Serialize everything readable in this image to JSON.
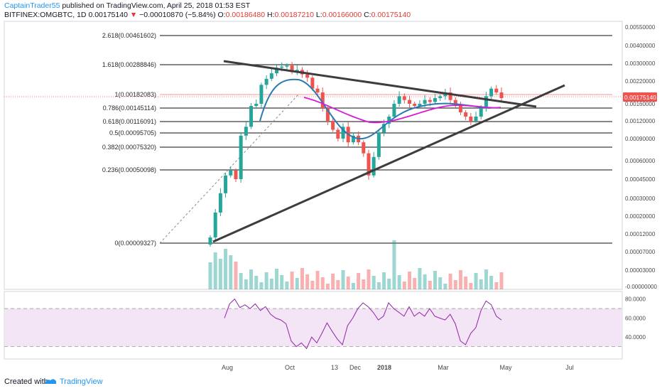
{
  "header": {
    "author": "CaptainTrader55",
    "published": "published on TradingView.com, April 25, 2018 01:53 EST",
    "symbol": "BITFINEX:OMGBTC, 1D",
    "last": "0.00175140",
    "change_arrow": "▼",
    "change": "−0.00010870 (−5.84%)",
    "o_label": "O:",
    "o": "0.00186480",
    "h_label": "H:",
    "h": "0.00187210",
    "l_label": "L:",
    "l": "0.00166000",
    "c_label": "C:",
    "c": "0.00175140"
  },
  "footer": {
    "created_with": "Created with",
    "brand": "TradingView"
  },
  "colors": {
    "up": "#26a69a",
    "down": "#ef5350",
    "ma_blue": "#2a7ab0",
    "ma_magenta": "#d81bd8",
    "rsi_line": "#8e24aa",
    "rsi_band": "#f3e5f5",
    "trendline": "#3d3d3d",
    "price_tag": "#ef5350"
  },
  "chart_data": {
    "type": "candlestick",
    "price_axis_labels": [
      "0.00550000",
      "0.00400000",
      "0.00300000",
      "0.00220000",
      "0.00160000",
      "0.00120000",
      "0.00090000",
      "0.00060000",
      "0.00045000",
      "0.00030000",
      "0.00020000",
      "0.00012000",
      "0.00007000",
      "0.00003000",
      "-0.00000000"
    ],
    "current_price_tag": "0.00175140",
    "rsi_axis_labels": [
      "80.0000",
      "60.0000",
      "40.0000"
    ],
    "time_axis_labels": [
      "Aug",
      "Oct",
      "13",
      "Dec",
      "2018",
      "Mar",
      "May",
      "Jul"
    ],
    "fib_levels": [
      {
        "label": "2.618(0.00461602)"
      },
      {
        "label": "1.618(0.00288846)"
      },
      {
        "label": "1(0.00182083)"
      },
      {
        "label": "0.786(0.00145114)"
      },
      {
        "label": "0.618(0.00116091)"
      },
      {
        "label": "0.5(0.00095705)"
      },
      {
        "label": "0.382(0.00075320)"
      },
      {
        "label": "0.236(0.00050098)"
      },
      {
        "label": "0(0.00009327)"
      }
    ],
    "series": [
      {
        "close": [
          0.00011,
          0.00022,
          0.00034,
          0.00048,
          0.00052,
          0.00045,
          0.00095,
          0.0011,
          0.00155,
          0.0016,
          0.0021,
          0.0023,
          0.00255,
          0.0028,
          0.00285,
          0.0029,
          0.0026,
          0.0027,
          0.0025,
          0.00235,
          0.002,
          0.0019,
          0.0015,
          0.0012,
          0.00105,
          0.0009,
          0.0011,
          0.00085,
          0.00095,
          0.00085,
          0.0007,
          0.00048,
          0.00065,
          0.001,
          0.00115,
          0.0013,
          0.0016,
          0.0018,
          0.0017,
          0.0016,
          0.00155,
          0.0016,
          0.0017,
          0.00165,
          0.00175,
          0.0018,
          0.0019,
          0.0017,
          0.00155,
          0.0014,
          0.0013,
          0.0012,
          0.0013,
          0.0015,
          0.0018,
          0.002,
          0.0019,
          0.00175
        ]
      }
    ],
    "rsi": {
      "values": [
        60,
        75,
        80,
        71,
        74,
        70,
        75,
        68,
        72,
        64,
        60,
        58,
        54,
        36,
        30,
        34,
        28,
        40,
        34,
        44,
        55,
        46,
        38,
        32,
        52,
        60,
        70,
        76,
        72,
        66,
        58,
        62,
        76,
        70,
        66,
        62,
        72,
        62,
        66,
        62,
        70,
        62,
        60,
        58,
        64,
        54,
        36,
        32,
        44,
        50,
        68,
        78,
        74,
        62,
        58
      ],
      "bands": [
        70,
        30
      ],
      "ylim": [
        20,
        85
      ]
    }
  }
}
